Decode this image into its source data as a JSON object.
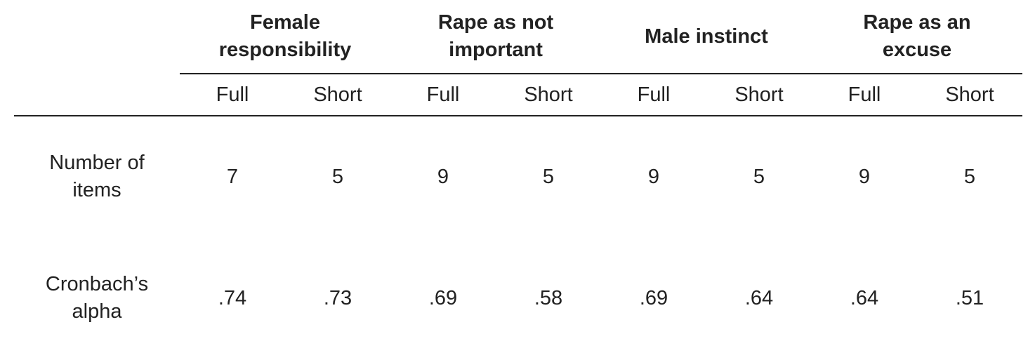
{
  "table": {
    "groups": [
      "Female responsibility",
      "Rape as not important",
      "Male instinct",
      "Rape as an excuse"
    ],
    "subheaders": [
      "Full",
      "Short",
      "Full",
      "Short",
      "Full",
      "Short",
      "Full",
      "Short"
    ],
    "rows": [
      [
        "Number of items",
        "7",
        "5",
        "9",
        "5",
        "9",
        "5",
        "9",
        "5"
      ],
      [
        "Cronbach’s alpha",
        ".74",
        ".73",
        ".69",
        ".58",
        ".69",
        ".64",
        ".64",
        ".51"
      ]
    ]
  }
}
